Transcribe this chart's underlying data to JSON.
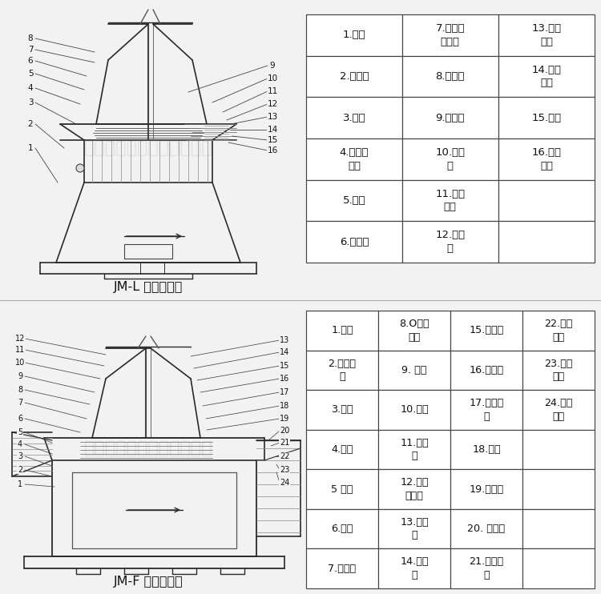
{
  "bg": "#f2f2f2",
  "lc": "#2a2a2a",
  "wm": "宁波骏丰伟业机械有限公司",
  "cap1": "JM-L 立式胶体磨",
  "cap2": "JM-F 分体胶体磨",
  "t1": [
    [
      "1.底座",
      "7.冷却水\n管接头",
      "13.冷却\n通道"
    ],
    [
      "2.电动机",
      "8.加料斗",
      "14.密封\n组件"
    ],
    [
      "3.端盖",
      "9.旋叶刀",
      "15.壳体"
    ],
    [
      "4.自循环\n系统",
      "10.动磨\n盘",
      "16.主轴\n轴承"
    ],
    [
      "5.手柄",
      "11.定位\n螺钉",
      ""
    ],
    [
      "6.调节盘",
      "12.静磨\n盘",
      ""
    ]
  ],
  "t2": [
    [
      "1.底座",
      "8.O型密\n封圈",
      "15.静磨盘",
      "22.三角\n皮带"
    ],
    [
      "2.主皮带\n轮",
      "9. 手柄",
      "16.调节盘",
      "23.电动\n机座"
    ],
    [
      "3.轴承",
      "10.压盖",
      "17.密封组\n件",
      "24.从皮\n带轮"
    ],
    [
      "4.主轴",
      "11.加料\n斗",
      "18.壳体",
      ""
    ],
    [
      "5 机座",
      "12.自循\n环系统",
      "19.排泄孔",
      ""
    ],
    [
      "6.轴承",
      "13.旋叶\n刀",
      "20. 电动机",
      ""
    ],
    [
      "7.出料口",
      "14.动磨\n盘",
      "21.调节螺\n丝",
      ""
    ]
  ]
}
